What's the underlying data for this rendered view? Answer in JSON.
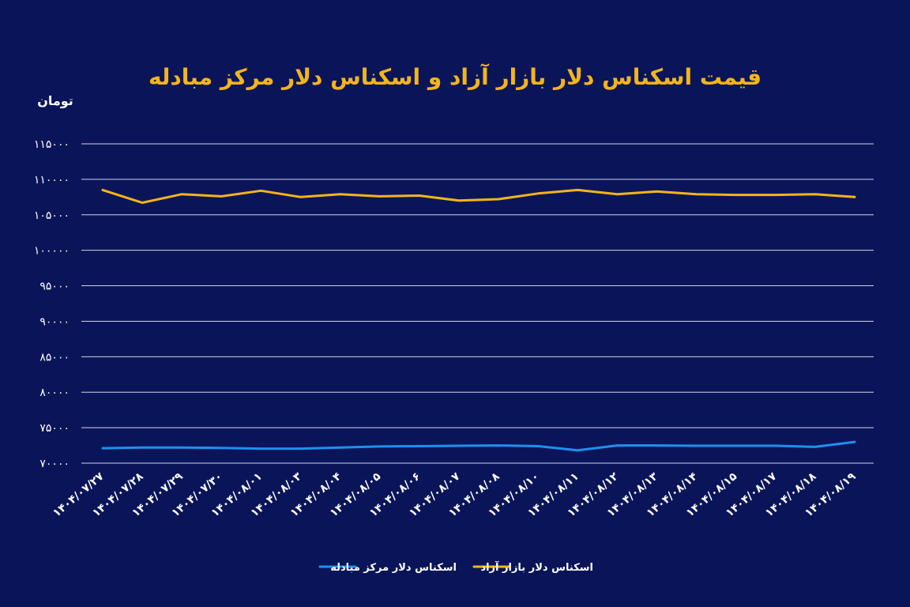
{
  "colors": {
    "background": "#0a1559",
    "title": "#f5b418",
    "text": "#ffffff",
    "grid": "#e6e9f5",
    "free_market": "#f5b418",
    "exchange_center": "#1e90f0"
  },
  "chart_data": {
    "type": "line",
    "title": "قیمت اسکناس دلار بازار آزاد و اسکناس دلار مرکز مبادله",
    "ylabel": "تومان",
    "xlabel": "",
    "ylim": [
      70000,
      115000
    ],
    "y_ticks": [
      70000,
      75000,
      80000,
      85000,
      90000,
      95000,
      100000,
      105000,
      110000,
      115000
    ],
    "y_tick_labels": [
      "۷۰۰۰۰",
      "۷۵۰۰۰",
      "۸۰۰۰۰",
      "۸۵۰۰۰",
      "۹۰۰۰۰",
      "۹۵۰۰۰",
      "۱۰۰۰۰۰",
      "۱۰۵۰۰۰",
      "۱۱۰۰۰۰",
      "۱۱۵۰۰۰"
    ],
    "grid": true,
    "legend_position": "bottom-center",
    "categories": [
      "۱۴۰۴/۰۷/۲۷",
      "۱۴۰۴/۰۷/۲۸",
      "۱۴۰۴/۰۷/۲۹",
      "۱۴۰۴/۰۷/۳۰",
      "۱۴۰۴/۰۸/۰۱",
      "۱۴۰۴/۰۸/۰۳",
      "۱۴۰۴/۰۸/۰۴",
      "۱۴۰۴/۰۸/۰۵",
      "۱۴۰۴/۰۸/۰۶",
      "۱۴۰۴/۰۸/۰۷",
      "۱۴۰۴/۰۸/۰۸",
      "۱۴۰۴/۰۸/۱۰",
      "۱۴۰۴/۰۸/۱۱",
      "۱۴۰۴/۰۸/۱۲",
      "۱۴۰۴/۰۸/۱۳",
      "۱۴۰۴/۰۸/۱۴",
      "۱۴۰۴/۰۸/۱۵",
      "۱۴۰۴/۰۸/۱۷",
      "۱۴۰۴/۰۸/۱۸",
      "۱۴۰۴/۰۸/۱۹"
    ],
    "series": [
      {
        "name": "اسکناس دلار بازار آزاد",
        "color_key": "free_market",
        "values": [
          108500,
          106700,
          107900,
          107600,
          108400,
          107500,
          107900,
          107600,
          107700,
          107000,
          107200,
          108000,
          108500,
          107900,
          108300,
          107900,
          107800,
          107800,
          107900,
          107500
        ]
      },
      {
        "name": "اسکناس دلار مرکز مبادله",
        "color_key": "exchange_center",
        "values": [
          72100,
          72200,
          72200,
          72150,
          72050,
          72050,
          72200,
          72350,
          72400,
          72450,
          72500,
          72400,
          71800,
          72500,
          72500,
          72450,
          72450,
          72450,
          72300,
          73000
        ]
      }
    ]
  }
}
